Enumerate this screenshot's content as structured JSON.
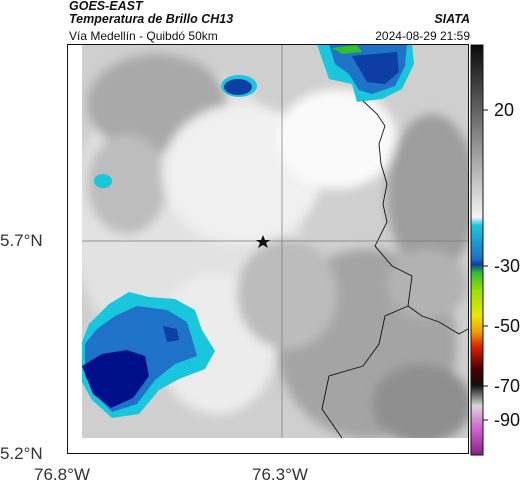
{
  "header": {
    "satellite": "GOES-EAST",
    "product": "Temperatura de Brillo CH13",
    "location": "Vía Medellín - Quibdó 50km",
    "organization": "SIATA",
    "datetime": "2024-08-29 21:59"
  },
  "axes": {
    "lat_ticks": [
      {
        "value": 5.7,
        "label": "5.7°N"
      },
      {
        "value": 5.2,
        "label": "5.2°N"
      }
    ],
    "lon_ticks": [
      {
        "value": -76.8,
        "label": "76.8°W"
      },
      {
        "value": -76.3,
        "label": "76.3°W"
      }
    ],
    "lat_range": [
      5.2,
      6.23
    ],
    "lon_range": [
      -76.8,
      -75.8
    ]
  },
  "marker": {
    "type": "star",
    "lat": 5.7,
    "lon": -76.32
  },
  "colorbar": {
    "ticks": [
      {
        "value": 20,
        "label": "20"
      },
      {
        "value": -30,
        "label": "-30"
      },
      {
        "value": -50,
        "label": "-50"
      },
      {
        "value": -70,
        "label": "-70"
      },
      {
        "value": -90,
        "label": "-90"
      }
    ],
    "colors": {
      "warm_top": "#111111",
      "cold_cloud": "#1e4fa8",
      "deep_cold": "#00108a",
      "cyan": "#19c6dc",
      "green": "#2fbf2f",
      "yellow": "#e8e800",
      "red": "#e02000",
      "magenta": "#b030b0"
    }
  }
}
